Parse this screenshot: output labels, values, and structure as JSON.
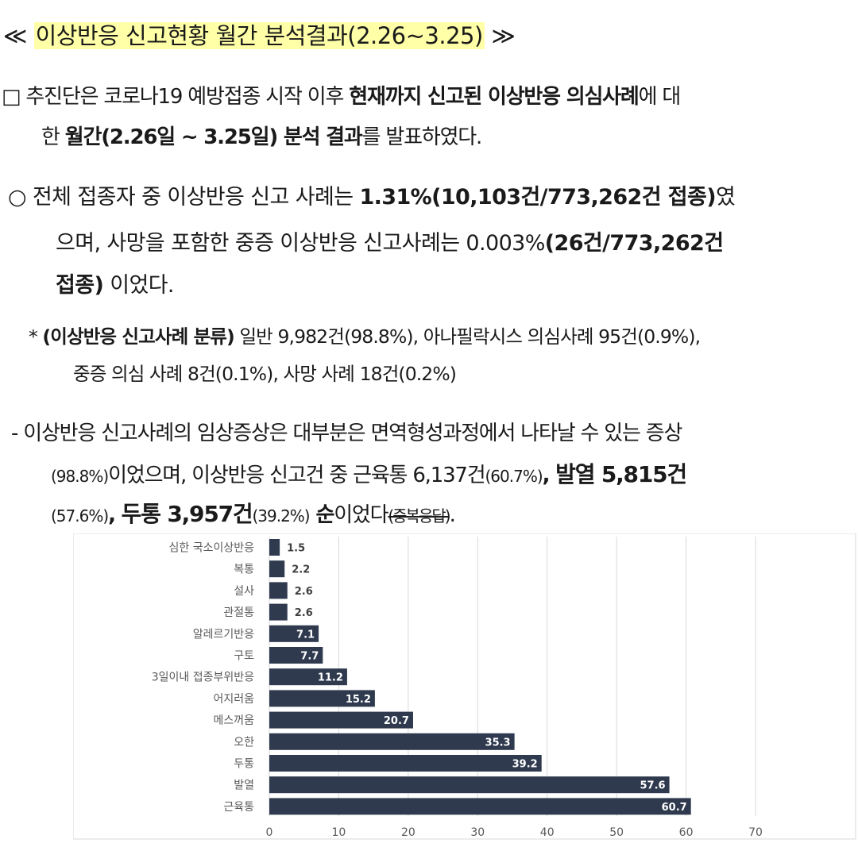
{
  "title": {
    "prefix": "≪ ",
    "highlight": "이상반응 신고현황 월간 분석결과(2.26~3.25)",
    "suffix": " ≫"
  },
  "para1": {
    "l1_a": "□ 추진단은 코로나19 예방접종 시작 이후 ",
    "l1_b": "현재까지 신고된 이상반응 의심사례",
    "l1_c": "에 대",
    "l2_a": "한 ",
    "l2_b": "월간(2.26일 ~ 3.25일) 분석 결과",
    "l2_c": "를 발표하였다."
  },
  "para2": {
    "l1_a": "○ 전체 접종자 중 이상반응 신고 사례는 ",
    "l1_b": "1.31%(10,103건/773,262건 접종)",
    "l1_c": "였",
    "l2_a": "으며, 사망을 포함한 중증 이상반응 신고사례는 0.003%",
    "l2_b": "(26건/773,262건",
    "l3_a": "접종)",
    "l3_b": " 이었다."
  },
  "para3": {
    "l1_a": "* ",
    "l1_b": "(이상반응 신고사례 분류)",
    "l1_c": " 일반 9,982건(98.8%), 아나필락시스 의심사례 95건(0.9%),",
    "l2": "중증 의심 사례 8건(0.1%), 사망 사례 18건(0.2%)"
  },
  "para4": {
    "l1": "- 이상반응 신고사례의 임상증상은 대부분은 면역형성과정에서 나타날 수 있는 증상",
    "l2_a": "(98.8%)",
    "l2_b": "이었으며, 이상반응 신고건 중 근육통 6,137건",
    "l2_c": "(60.7%)",
    "l2_d": ", ",
    "l2_e": "발열 5,815건",
    "l3_a": "(57.6%)",
    "l3_b": ", ",
    "l3_c": "두통 3,957건",
    "l3_d": "(39.2%)",
    "l3_e": " 순",
    "l3_f": "이었다",
    "l3_g": "(중복응답)",
    "l3_h": "."
  },
  "chart_data": {
    "type": "bar",
    "orientation": "horizontal",
    "categories": [
      "심한 국소이상반응",
      "복통",
      "설사",
      "관절통",
      "알레르기반응",
      "구토",
      "3일이내 접종부위반응",
      "어지러움",
      "메스꺼움",
      "오한",
      "두통",
      "발열",
      "근육통"
    ],
    "values": [
      1.5,
      2.2,
      2.6,
      2.6,
      7.1,
      7.7,
      11.2,
      15.2,
      20.7,
      35.3,
      39.2,
      57.6,
      60.7
    ],
    "value_labels": [
      "1.5",
      "2.2",
      "2.6",
      "2.6",
      "7.1",
      "7.7",
      "11.2",
      "15.2",
      "20.7",
      "35.3",
      "39.2",
      "57.6",
      "60.7"
    ],
    "xlim": [
      0,
      70
    ],
    "xticks": [
      "0",
      "10",
      "20",
      "30",
      "40",
      "50",
      "60",
      "70"
    ],
    "grid": true,
    "bar_color": "#2f3a4f"
  }
}
